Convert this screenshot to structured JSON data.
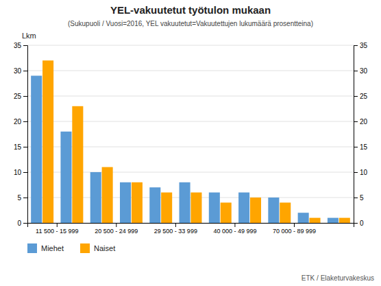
{
  "chart_data": {
    "type": "bar",
    "title": "YEL-vakuutetut työtulon mukaan",
    "subtitle": "(Sukupuoli / Vuosi=2016, YEL vakuutetut=Vakuutettujen lukumäärä prosentteina)",
    "ylabel": "Lkm",
    "footer": "ETK / Elaketurvakeskus",
    "categories": [
      "11 500 - 15 999",
      null,
      "20 500 - 24 999",
      null,
      "29 500 - 33 999",
      null,
      "40 000 - 49 999",
      null,
      "70 000 - 89 999",
      null,
      null
    ],
    "series": [
      {
        "name": "Miehet",
        "color": "#5B9BD5",
        "values": [
          29,
          18,
          10,
          8,
          7,
          8,
          6,
          6,
          5,
          2,
          1
        ]
      },
      {
        "name": "Naiset",
        "color": "#FFA500",
        "values": [
          32,
          23,
          11,
          8,
          6,
          6,
          4,
          5,
          4,
          1,
          1
        ]
      }
    ],
    "ylim": [
      0,
      35
    ],
    "yticks": [
      0,
      5,
      10,
      15,
      20,
      25,
      30,
      35
    ],
    "grid": true,
    "legend": "bottom"
  }
}
